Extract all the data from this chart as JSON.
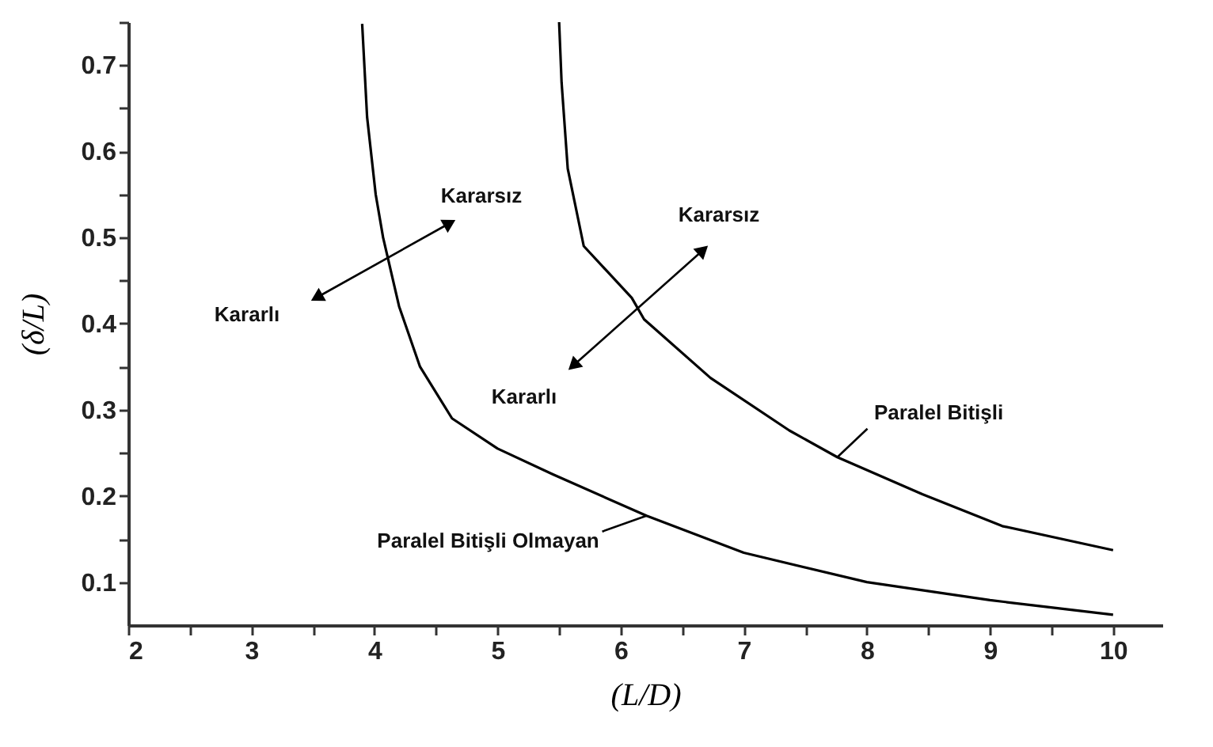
{
  "chart_data": {
    "type": "line",
    "xlabel": "(L/D)",
    "ylabel": "(δ/L)",
    "xlim": [
      2,
      10.4
    ],
    "ylim": [
      0.05,
      0.75
    ],
    "xticks": [
      2,
      {
        "value": 2.5,
        "label": null
      },
      3,
      {
        "value": 3.5,
        "label": null
      },
      4,
      {
        "value": 4.5,
        "label": null
      },
      5,
      {
        "value": 5.5,
        "label": null
      },
      6,
      {
        "value": 6.5,
        "label": null
      },
      7,
      {
        "value": 7.5,
        "label": null
      },
      8,
      {
        "value": 8.5,
        "label": null
      },
      9,
      {
        "value": 9.5,
        "label": null
      },
      10
    ],
    "yticks": [
      0.1,
      {
        "value": 0.15,
        "label": null
      },
      0.2,
      {
        "value": 0.25,
        "label": null
      },
      0.3,
      {
        "value": 0.35,
        "label": null
      },
      0.4,
      {
        "value": 0.45,
        "label": null
      },
      0.5,
      {
        "value": 0.55,
        "label": null
      },
      0.6,
      {
        "value": 0.65,
        "label": null
      },
      0.7,
      {
        "value": 0.75,
        "label": null
      }
    ],
    "series": [
      {
        "name": "Paralel Bitişli Olmayan",
        "color": "#000000",
        "x": [
          3.9,
          3.94,
          4.01,
          4.07,
          4.2,
          4.37,
          4.63,
          5.0,
          5.45,
          6.21,
          7.0,
          8.0,
          9.0,
          10.0
        ],
        "values": [
          0.748,
          0.64,
          0.55,
          0.5,
          0.42,
          0.35,
          0.29,
          0.255,
          0.225,
          0.177,
          0.134,
          0.1,
          0.079,
          0.062
        ]
      },
      {
        "name": "Paralel Bitişli",
        "color": "#000000",
        "x": [
          5.5,
          5.52,
          5.57,
          5.7,
          6.09,
          6.19,
          6.73,
          7.37,
          7.76,
          8.45,
          9.1,
          10.0
        ],
        "values": [
          0.75,
          0.68,
          0.58,
          0.49,
          0.43,
          0.405,
          0.337,
          0.276,
          0.245,
          0.202,
          0.165,
          0.137
        ]
      }
    ],
    "annotations": [
      "Kararlı",
      "Kararsız",
      "Kararlı",
      "Kararsız"
    ],
    "legend": false,
    "grid": false,
    "marker": "none",
    "line_style": "solid"
  }
}
